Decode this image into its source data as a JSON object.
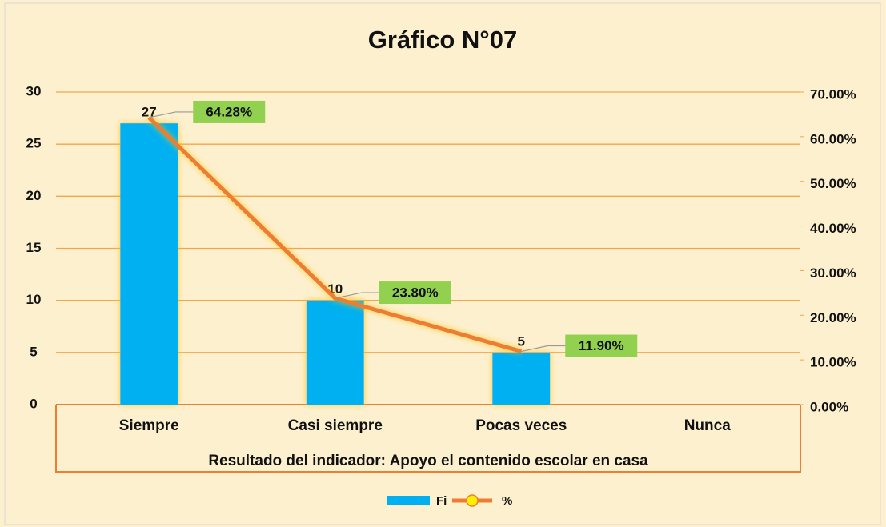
{
  "chart_data": {
    "type": "bar_line",
    "title": "Gráfico N°07",
    "x_label": "Resultado del indicador:  Apoyo el contenido escolar en casa",
    "categories": [
      "Siempre",
      "Casi siempre",
      "Pocas veces",
      "Nunca"
    ],
    "series": [
      {
        "name": "Fi",
        "type": "bar",
        "color": "#00b0f0",
        "values": [
          27,
          10,
          5,
          null
        ]
      },
      {
        "name": "%",
        "type": "line",
        "axis": "y2",
        "color": "#ed7d31",
        "marker_color": "#ffef00",
        "values": [
          64.28,
          23.8,
          11.9,
          null
        ],
        "value_labels": [
          "64.28%",
          "23.80%",
          "11.90%",
          null
        ]
      }
    ],
    "ylim": [
      0,
      30
    ],
    "yticks": [
      0,
      5,
      10,
      15,
      20,
      25,
      30
    ],
    "y2lim": [
      0,
      70
    ],
    "y2ticks": [
      {
        "value": 0,
        "label": "0.00%"
      },
      {
        "value": 10,
        "label": "10.00%"
      },
      {
        "value": 20,
        "label": "20.00%"
      },
      {
        "value": 30,
        "label": "30.00%"
      },
      {
        "value": 40,
        "label": "40.00%"
      },
      {
        "value": 50,
        "label": "50.00%"
      },
      {
        "value": 60,
        "label": "60.00%"
      },
      {
        "value": 70,
        "label": "70.00%"
      }
    ],
    "grid": true,
    "legend": "bottom"
  }
}
